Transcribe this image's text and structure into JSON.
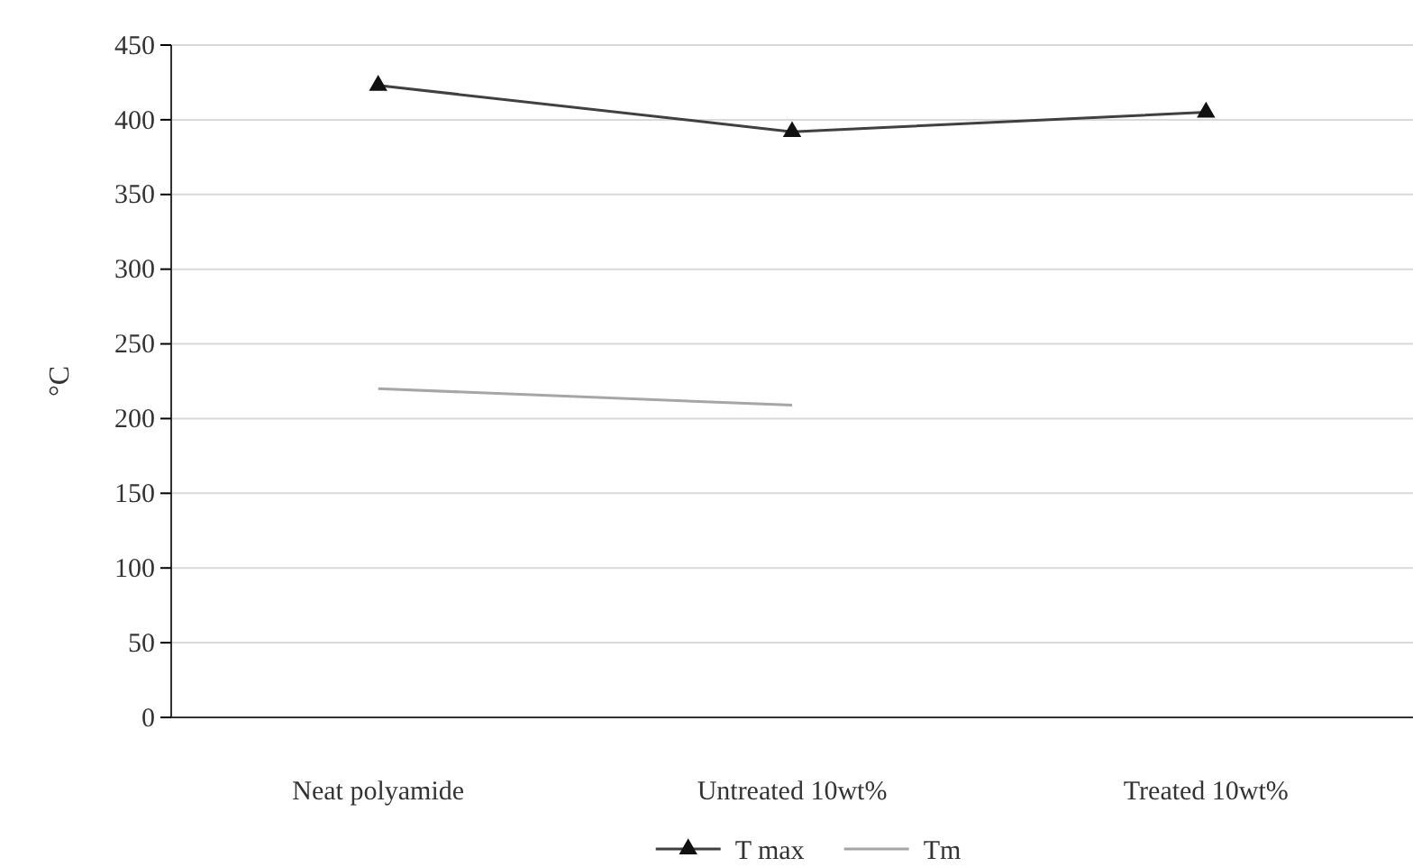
{
  "chart_data": {
    "type": "line",
    "ylabel": "°C",
    "categories": [
      "Neat polyamide",
      "Untreated 10wt%",
      "Treated 10wt%"
    ],
    "series": [
      {
        "name": "T max",
        "color": "#404040",
        "values": [
          423,
          392,
          405
        ],
        "marker": "triangle"
      },
      {
        "name": "Tm",
        "color": "#a6a6a6",
        "values": [
          220,
          209,
          null
        ],
        "marker": "none"
      }
    ],
    "ylim": [
      0,
      450
    ],
    "yticks": [
      0,
      50,
      100,
      150,
      200,
      250,
      300,
      350,
      400,
      450
    ],
    "grid": "y",
    "legend": "bottom",
    "line_style": "solid"
  }
}
